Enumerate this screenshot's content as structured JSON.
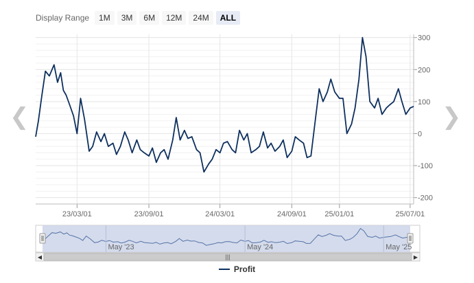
{
  "range_selector": {
    "label": "Display Range",
    "buttons": [
      {
        "label": "1M",
        "active": false
      },
      {
        "label": "3M",
        "active": false
      },
      {
        "label": "6M",
        "active": false
      },
      {
        "label": "12M",
        "active": false
      },
      {
        "label": "24M",
        "active": false
      },
      {
        "label": "ALL",
        "active": true
      }
    ]
  },
  "nav": {
    "prev_icon": "chevron-left-icon",
    "next_icon": "chevron-right-icon"
  },
  "legend": {
    "label": "Profit",
    "color": "#0d2f5e"
  },
  "navigator": {
    "labels": [
      "May '23",
      "May '24",
      "May '25"
    ]
  },
  "colors": {
    "series": "#0d2f5e",
    "navigator_fill": "#cfd7ea",
    "grid": "#e6e6e6"
  },
  "chart_data": {
    "type": "line",
    "x_tick_labels": [
      "23/03/01",
      "23/09/01",
      "24/03/01",
      "24/09/01",
      "25/01/01",
      "25/07/01"
    ],
    "y_tick_labels": [
      "300",
      "200",
      "100",
      "0",
      "-100",
      "-200"
    ],
    "ylim": [
      -220,
      310
    ],
    "xlim": [
      "2022-11-15",
      "2025-07-10"
    ],
    "series": [
      {
        "name": "Profit",
        "x": [
          "2022-11-15",
          "2022-11-22",
          "2022-12-01",
          "2022-12-10",
          "2022-12-20",
          "2023-01-01",
          "2023-01-10",
          "2023-01-18",
          "2023-01-25",
          "2023-02-01",
          "2023-02-10",
          "2023-02-20",
          "2023-03-01",
          "2023-03-10",
          "2023-03-20",
          "2023-04-01",
          "2023-04-10",
          "2023-04-20",
          "2023-05-01",
          "2023-05-10",
          "2023-05-20",
          "2023-06-01",
          "2023-06-10",
          "2023-06-20",
          "2023-07-01",
          "2023-07-10",
          "2023-07-20",
          "2023-08-01",
          "2023-08-10",
          "2023-08-20",
          "2023-09-01",
          "2023-09-10",
          "2023-09-20",
          "2023-10-01",
          "2023-10-10",
          "2023-10-20",
          "2023-11-01",
          "2023-11-10",
          "2023-11-20",
          "2023-12-01",
          "2023-12-10",
          "2023-12-20",
          "2024-01-01",
          "2024-01-10",
          "2024-01-20",
          "2024-02-01",
          "2024-02-10",
          "2024-02-20",
          "2024-03-01",
          "2024-03-10",
          "2024-03-20",
          "2024-04-01",
          "2024-04-10",
          "2024-04-20",
          "2024-05-01",
          "2024-05-10",
          "2024-05-20",
          "2024-06-01",
          "2024-06-10",
          "2024-06-20",
          "2024-07-01",
          "2024-07-10",
          "2024-07-20",
          "2024-08-01",
          "2024-08-10",
          "2024-08-20",
          "2024-09-01",
          "2024-09-10",
          "2024-09-20",
          "2024-10-01",
          "2024-10-10",
          "2024-10-20",
          "2024-11-01",
          "2024-11-10",
          "2024-11-20",
          "2024-12-01",
          "2024-12-10",
          "2024-12-20",
          "2025-01-01",
          "2025-01-10",
          "2025-01-20",
          "2025-02-01",
          "2025-02-10",
          "2025-02-20",
          "2025-03-01",
          "2025-03-10",
          "2025-03-20",
          "2025-04-01",
          "2025-04-10",
          "2025-04-20",
          "2025-05-01",
          "2025-05-10",
          "2025-05-20",
          "2025-06-01",
          "2025-06-10",
          "2025-06-20",
          "2025-07-01",
          "2025-07-10"
        ],
        "y": [
          -10,
          40,
          120,
          195,
          180,
          215,
          160,
          190,
          135,
          120,
          90,
          55,
          0,
          110,
          45,
          -55,
          -40,
          5,
          -25,
          0,
          -40,
          -30,
          -65,
          -40,
          5,
          -20,
          -60,
          -20,
          -50,
          -60,
          -70,
          -45,
          -90,
          -60,
          -50,
          -80,
          -20,
          50,
          -20,
          10,
          -15,
          -10,
          -50,
          -60,
          -120,
          -95,
          -80,
          -50,
          -60,
          -30,
          -25,
          -50,
          -60,
          10,
          -20,
          0,
          -60,
          -50,
          -40,
          5,
          -45,
          -30,
          -55,
          -40,
          -20,
          -75,
          -55,
          -10,
          -20,
          -30,
          -75,
          -70,
          50,
          140,
          100,
          130,
          170,
          130,
          110,
          110,
          0,
          30,
          80,
          170,
          300,
          240,
          100,
          80,
          110,
          60,
          80,
          90,
          100,
          140,
          100,
          60,
          80,
          85
        ]
      }
    ]
  }
}
